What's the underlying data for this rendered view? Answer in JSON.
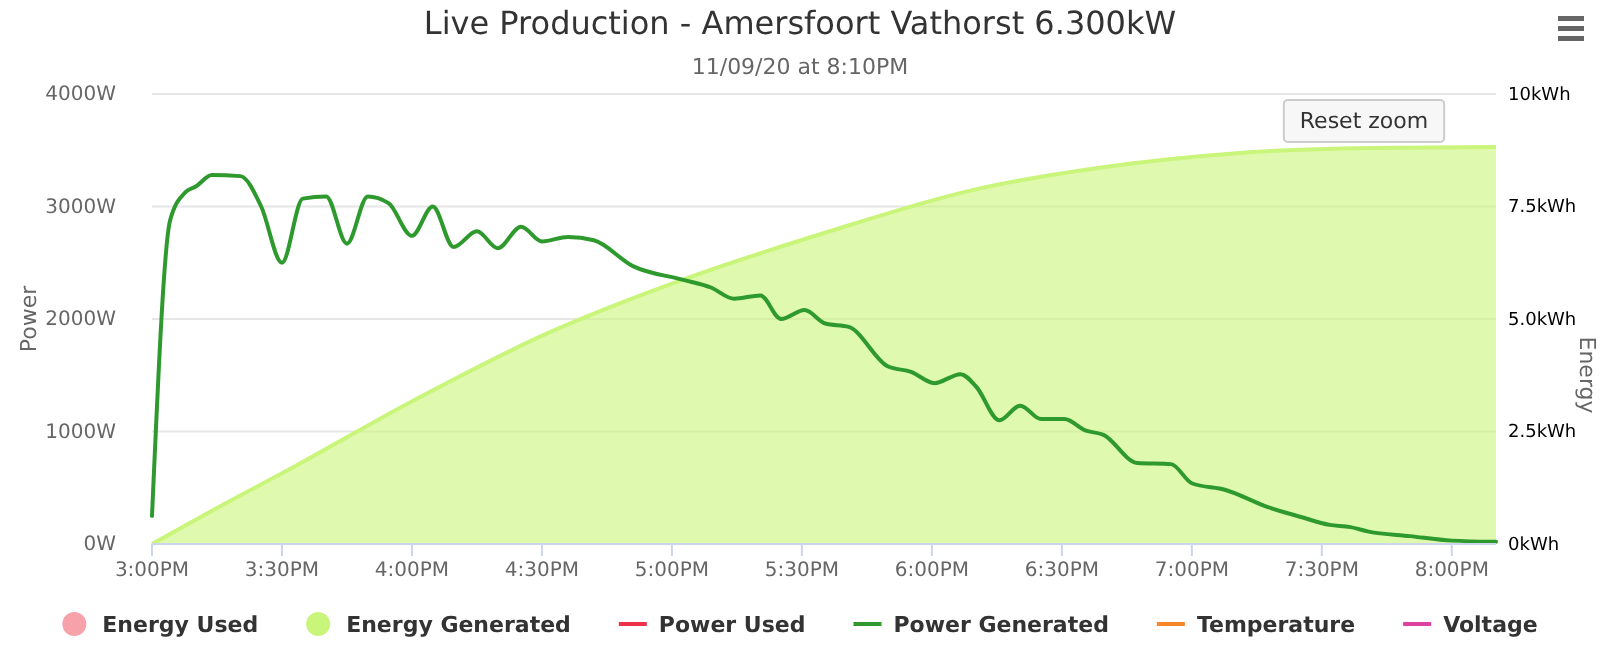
{
  "chart_data": {
    "type": "line",
    "title": "Live Production - Amersfoort Vathorst 6.300kW",
    "subtitle": "11/09/20 at 8:10PM",
    "ylabel": "Power",
    "y2label": "Energy",
    "xlim": [
      15,
      20.17
    ],
    "xticks": [
      {
        "value": 15,
        "label": "3:00PM"
      },
      {
        "value": 15.5,
        "label": "3:30PM"
      },
      {
        "value": 16,
        "label": "4:00PM"
      },
      {
        "value": 16.5,
        "label": "4:30PM"
      },
      {
        "value": 17,
        "label": "5:00PM"
      },
      {
        "value": 17.5,
        "label": "5:30PM"
      },
      {
        "value": 18,
        "label": "6:00PM"
      },
      {
        "value": 18.5,
        "label": "6:30PM"
      },
      {
        "value": 19,
        "label": "7:00PM"
      },
      {
        "value": 19.5,
        "label": "7:30PM"
      },
      {
        "value": 20,
        "label": "8:00PM"
      }
    ],
    "ylim": [
      0,
      4000
    ],
    "yticks": [
      {
        "value": 0,
        "label": "0W"
      },
      {
        "value": 1000,
        "label": "1000W"
      },
      {
        "value": 2000,
        "label": "2000W"
      },
      {
        "value": 3000,
        "label": "3000W"
      },
      {
        "value": 4000,
        "label": "4000W"
      }
    ],
    "y2lim": [
      0,
      10
    ],
    "y2ticks": [
      {
        "value": 0,
        "label": "0kWh"
      },
      {
        "value": 2.5,
        "label": "2.5kWh"
      },
      {
        "value": 5,
        "label": "5.0kWh"
      },
      {
        "value": 7.5,
        "label": "7.5kWh"
      },
      {
        "value": 10,
        "label": "10kWh"
      }
    ],
    "grid": "y",
    "legend": "bottom",
    "annotations": [
      "Reset zoom"
    ],
    "series": [
      {
        "name": "Energy Used",
        "type": "area",
        "axis": "y2",
        "color": "#f7a1ab"
      },
      {
        "name": "Energy Generated",
        "type": "area",
        "axis": "y2",
        "color": "#c9f57a",
        "x": [
          15,
          15.25,
          15.5,
          16.01,
          16.52,
          17.04,
          17.58,
          18.16,
          18.68,
          19.16,
          19.68,
          20.17
        ],
        "values": [
          0,
          0.8,
          1.57,
          3.2,
          4.68,
          5.87,
          6.9,
          7.87,
          8.39,
          8.68,
          8.8,
          8.82
        ]
      },
      {
        "name": "Power Used",
        "color": "#f0304a"
      },
      {
        "name": "Power Generated",
        "color": "#2e9a2e",
        "x": [
          15,
          15.07,
          15.13,
          15.17,
          15.23,
          15.34,
          15.42,
          15.5,
          15.58,
          15.67,
          15.75,
          15.83,
          15.91,
          16,
          16.08,
          16.16,
          16.25,
          16.33,
          16.42,
          16.5,
          16.6,
          16.7,
          16.85,
          17.04,
          17.15,
          17.24,
          17.34,
          17.42,
          17.51,
          17.59,
          17.68,
          17.83,
          17.92,
          18.01,
          18.11,
          18.17,
          18.26,
          18.34,
          18.42,
          18.51,
          18.59,
          18.66,
          18.79,
          18.92,
          19,
          19.13,
          19.29,
          19.42,
          19.53,
          19.61,
          19.68,
          19.84,
          20,
          20.17
        ],
        "values": [
          250,
          2880,
          3130,
          3180,
          3280,
          3270,
          3000,
          2500,
          3070,
          3090,
          2670,
          3090,
          3030,
          2740,
          3000,
          2640,
          2780,
          2630,
          2820,
          2690,
          2730,
          2700,
          2470,
          2350,
          2280,
          2180,
          2210,
          2000,
          2080,
          1960,
          1930,
          1580,
          1530,
          1430,
          1510,
          1400,
          1100,
          1230,
          1110,
          1110,
          1010,
          970,
          720,
          710,
          540,
          480,
          330,
          240,
          170,
          150,
          110,
          70,
          30,
          20
        ]
      },
      {
        "name": "Temperature",
        "color": "#f7862a"
      },
      {
        "name": "Voltage",
        "color": "#e040a0"
      }
    ]
  }
}
